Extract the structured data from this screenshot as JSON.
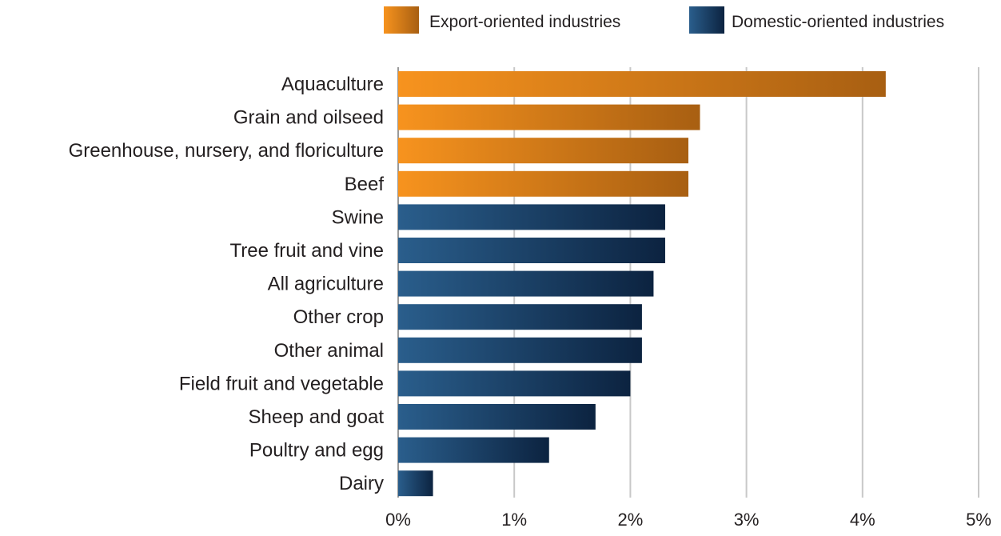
{
  "chart_data": {
    "type": "bar",
    "orientation": "horizontal",
    "title": "",
    "xlabel": "",
    "ylabel": "",
    "xlim": [
      0,
      5
    ],
    "x_ticks": [
      "0%",
      "1%",
      "2%",
      "3%",
      "4%",
      "5%"
    ],
    "grid": "vertical",
    "legend_position": "top-right",
    "legend": [
      {
        "name": "Export-oriented industries",
        "color": "#f7931e"
      },
      {
        "name": "Domestic-oriented industries",
        "color": "#1f4e79"
      }
    ],
    "categories": [
      "Aquaculture",
      "Grain and oilseed",
      "Greenhouse, nursery, and floriculture",
      "Beef",
      "Swine",
      "Tree fruit and vine",
      "All agriculture",
      "Other crop",
      "Other animal",
      "Field fruit and vegetable",
      "Sheep and goat",
      "Poultry and egg",
      "Dairy"
    ],
    "values": [
      4.2,
      2.6,
      2.5,
      2.5,
      2.3,
      2.3,
      2.2,
      2.1,
      2.1,
      2.0,
      1.7,
      1.3,
      0.3
    ],
    "group": [
      "Export-oriented industries",
      "Export-oriented industries",
      "Export-oriented industries",
      "Export-oriented industries",
      "Domestic-oriented industries",
      "Domestic-oriented industries",
      "Domestic-oriented industries",
      "Domestic-oriented industries",
      "Domestic-oriented industries",
      "Domestic-oriented industries",
      "Domestic-oriented industries",
      "Domestic-oriented industries",
      "Domestic-oriented industries"
    ]
  }
}
